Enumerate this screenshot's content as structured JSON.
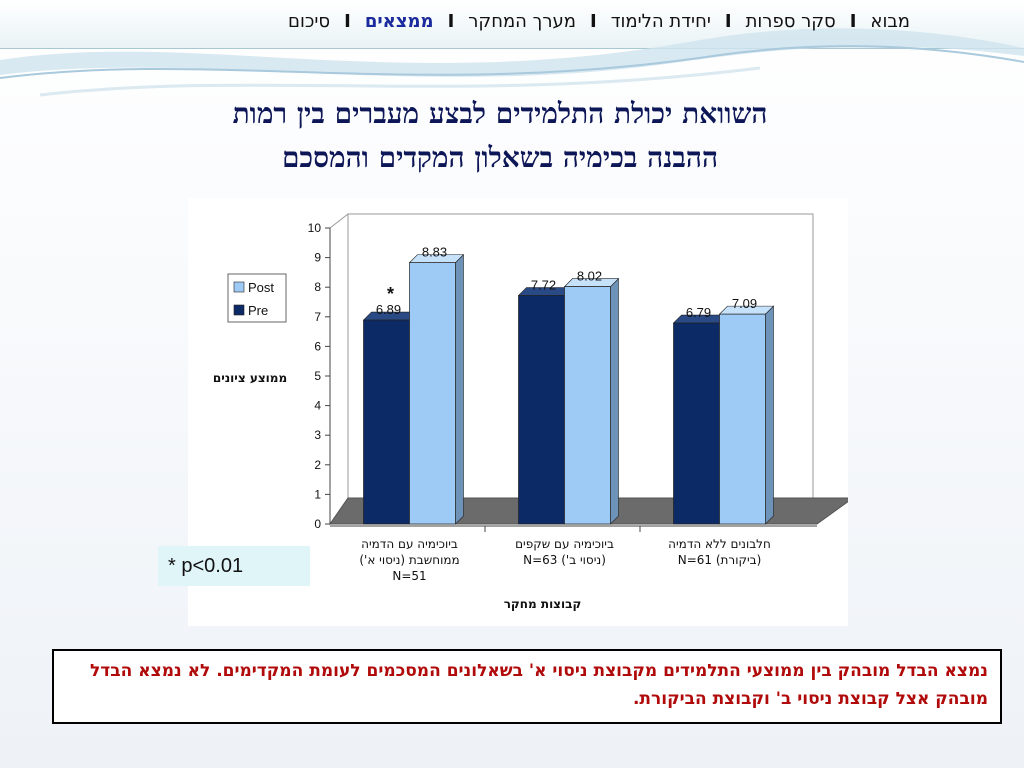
{
  "nav": {
    "items": [
      {
        "label": "מבוא",
        "active": false
      },
      {
        "label": "סקר ספרות",
        "active": false
      },
      {
        "label": "יחידת הלימוד",
        "active": false
      },
      {
        "label": "מערך המחקר",
        "active": false
      },
      {
        "label": "ממצאים",
        "active": true
      },
      {
        "label": "סיכום",
        "active": false
      }
    ],
    "separator": "I"
  },
  "title": {
    "line1": "השוואת יכולת התלמידים לבצע מעברים בין רמות",
    "line2": "ההבנה בכימיה בשאלון המקדים והמסכם"
  },
  "chart_data": {
    "type": "bar",
    "categories": [
      [
        "ביוכימיה עם הדמיה",
        "ממוחשבת (ניסוי א')",
        "N=51"
      ],
      [
        "ביוכימיה עם שקפים",
        "(ניסוי ב')  N=63"
      ],
      [
        "חלבונים ללא הדמיה",
        "(ביקורת)  N=61"
      ]
    ],
    "series": [
      {
        "name": "Pre",
        "values": [
          6.89,
          7.72,
          6.79
        ],
        "color": "#0b2a66"
      },
      {
        "name": "Post",
        "values": [
          8.83,
          8.02,
          7.09
        ],
        "color": "#9ecbf5"
      }
    ],
    "ylim": [
      0,
      10
    ],
    "yticks": [
      "0",
      "1",
      "2",
      "3",
      "4",
      "5",
      "6",
      "7",
      "8",
      "9",
      "10"
    ],
    "ylabel": "ממוצע ציונים",
    "xlabel": "קבוצות מחקר",
    "legend": [
      {
        "name": "Post"
      },
      {
        "name": "Pre"
      }
    ],
    "legend_position": "left",
    "annotation": "*",
    "floor_color": "#6b6b6b"
  },
  "significance_note": "* p<0.01",
  "conclusion": "נמצא הבדל מובהק בין ממוצעי התלמידים מקבוצת ניסוי א' בשאלונים המסכמים לעומת המקדימים. לא נמצא הבדל מובהק אצל קבוצת ניסוי ב' וקבוצת הביקורת."
}
